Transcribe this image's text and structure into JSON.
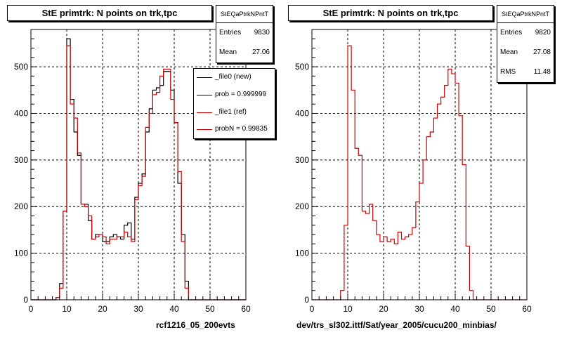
{
  "panels": [
    {
      "title": "StE primtrk: N points on trk,tpc",
      "stats": {
        "name": "StEQaPtrkNPntT",
        "rows": [
          {
            "label": "Entries",
            "value": "9830"
          },
          {
            "label": "Mean",
            "value": "27.06"
          }
        ]
      },
      "legend": [
        {
          "label": "_file0 (new)",
          "color": "#000000"
        },
        {
          "label": "prob = 0.999999",
          "color": "#000000"
        },
        {
          "label": "_file1 (ref)",
          "color": "#cc0000"
        },
        {
          "label": "probN = 0.99835",
          "color": "#cc0000"
        }
      ],
      "footer": "rcf1216_05_200evts",
      "chart_data": {
        "type": "histogram",
        "xlim": [
          0,
          60
        ],
        "ylim": [
          0,
          580
        ],
        "xticks": [
          0,
          10,
          20,
          30,
          40,
          50,
          60
        ],
        "yticks": [
          0,
          100,
          200,
          300,
          400,
          500
        ],
        "grid": true,
        "bin_width": 1,
        "series": [
          {
            "name": "_file0 (new)",
            "color": "#000000",
            "values": [
              0,
              0,
              0,
              0,
              0,
              0,
              0,
              5,
              35,
              190,
              560,
              430,
              360,
              310,
              205,
              205,
              170,
              130,
              140,
              140,
              125,
              125,
              135,
              140,
              135,
              130,
              160,
              165,
              130,
              220,
              250,
              270,
              360,
              410,
              450,
              455,
              460,
              490,
              490,
              450,
              380,
              250,
              140,
              40,
              0,
              0,
              0,
              0,
              0,
              0,
              0,
              0,
              0,
              0,
              0,
              0,
              0,
              0,
              0,
              0
            ]
          },
          {
            "name": "_file1 (ref)",
            "color": "#cc0000",
            "values": [
              0,
              0,
              0,
              0,
              0,
              0,
              0,
              5,
              25,
              190,
              545,
              420,
              390,
              315,
              205,
              200,
              180,
              130,
              135,
              140,
              135,
              120,
              130,
              130,
              135,
              135,
              145,
              135,
              125,
              215,
              245,
              265,
              370,
              400,
              440,
              445,
              480,
              495,
              495,
              430,
              380,
              275,
              125,
              25,
              0,
              0,
              0,
              0,
              0,
              0,
              0,
              0,
              0,
              0,
              0,
              0,
              0,
              0,
              0,
              0
            ]
          }
        ]
      }
    },
    {
      "title": "StE primtrk: N points on trk,tpc",
      "stats": {
        "name": "StEQaPtrkNPntT",
        "rows": [
          {
            "label": "Entries",
            "value": "9820"
          },
          {
            "label": "Mean",
            "value": "27.08"
          },
          {
            "label": "RMS",
            "value": "11.48"
          }
        ]
      },
      "footer": "dev/trs_sl302.ittf/Sat/year_2005/cucu200_minbias/",
      "chart_data": {
        "type": "histogram",
        "xlim": [
          0,
          60
        ],
        "ylim": [
          0,
          580
        ],
        "xticks": [
          0,
          10,
          20,
          30,
          40,
          50,
          60
        ],
        "yticks": [
          0,
          100,
          200,
          300,
          400,
          500
        ],
        "grid": true,
        "bin_width": 1,
        "series": [
          {
            "name": "",
            "color": "#cc0000",
            "values": [
              0,
              0,
              0,
              0,
              0,
              0,
              0,
              0,
              20,
              160,
              545,
              450,
              325,
              310,
              190,
              185,
              205,
              170,
              140,
              125,
              135,
              125,
              130,
              120,
              145,
              130,
              135,
              140,
              155,
              210,
              250,
              300,
              350,
              360,
              390,
              420,
              435,
              460,
              495,
              485,
              465,
              395,
              290,
              115,
              20,
              0,
              0,
              0,
              0,
              0,
              0,
              0,
              0,
              0,
              0,
              0,
              0,
              0,
              0,
              0
            ]
          }
        ]
      }
    }
  ]
}
